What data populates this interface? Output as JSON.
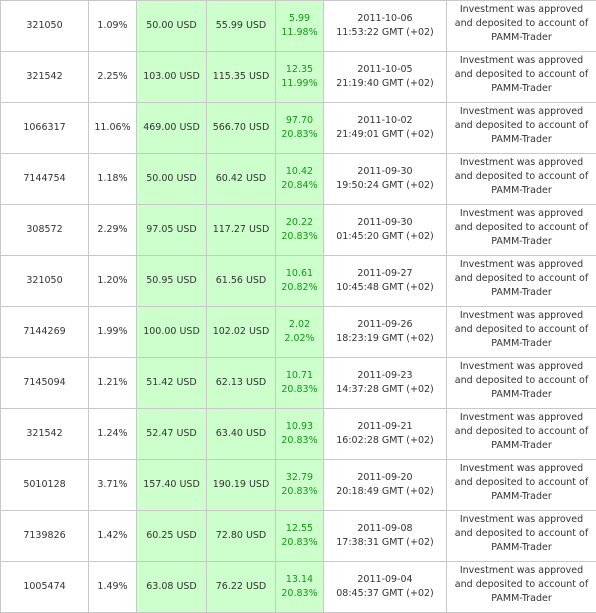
{
  "table": {
    "rows": [
      [
        "321050",
        "1.09%",
        "50.00 USD",
        "55.99 USD",
        "5.99",
        "11.98%",
        "2011-10-06",
        "11:53:22 GMT (+02)",
        "Investment was approved and deposited to account of PAMM-Trader"
      ],
      [
        "321542",
        "2.25%",
        "103.00 USD",
        "115.35 USD",
        "12.35",
        "11.99%",
        "2011-10-05",
        "21:19:40 GMT (+02)",
        "Investment was approved and deposited to account of PAMM-Trader"
      ],
      [
        "1066317",
        "11.06%",
        "469.00 USD",
        "566.70 USD",
        "97.70",
        "20.83%",
        "2011-10-02",
        "21:49:01 GMT (+02)",
        "Investment was approved and deposited to account of PAMM-Trader"
      ],
      [
        "7144754",
        "1.18%",
        "50.00 USD",
        "60.42 USD",
        "10.42",
        "20.84%",
        "2011-09-30",
        "19:50:24 GMT (+02)",
        "Investment was approved and deposited to account of PAMM-Trader"
      ],
      [
        "308572",
        "2.29%",
        "97.05 USD",
        "117.27 USD",
        "20.22",
        "20.83%",
        "2011-09-30",
        "01:45:20 GMT (+02)",
        "Investment was approved and deposited to account of PAMM-Trader"
      ],
      [
        "321050",
        "1.20%",
        "50.95 USD",
        "61.56 USD",
        "10.61",
        "20.82%",
        "2011-09-27",
        "10:45:48 GMT (+02)",
        "Investment was approved and deposited to account of PAMM-Trader"
      ],
      [
        "7144269",
        "1.99%",
        "100.00 USD",
        "102.02 USD",
        "2.02",
        "2.02%",
        "2011-09-26",
        "18:23:19 GMT (+02)",
        "Investment was approved and deposited to account of PAMM-Trader"
      ],
      [
        "7145094",
        "1.21%",
        "51.42 USD",
        "62.13 USD",
        "10.71",
        "20.83%",
        "2011-09-23",
        "14:37:28 GMT (+02)",
        "Investment was approved and deposited to account of PAMM-Trader"
      ],
      [
        "321542",
        "1.24%",
        "52.47 USD",
        "63.40 USD",
        "10.93",
        "20.83%",
        "2011-09-21",
        "16:02:28 GMT (+02)",
        "Investment was approved and deposited to account of PAMM-Trader"
      ],
      [
        "5010128",
        "3.71%",
        "157.40 USD",
        "190.19 USD",
        "32.79",
        "20.83%",
        "2011-09-20",
        "20:18:49 GMT (+02)",
        "Investment was approved and deposited to account of PAMM-Trader"
      ],
      [
        "7139826",
        "1.42%",
        "60.25 USD",
        "72.80 USD",
        "12.55",
        "20.83%",
        "2011-09-08",
        "17:38:31 GMT (+02)",
        "Investment was approved and deposited to account of PAMM-Trader"
      ],
      [
        "1005474",
        "1.49%",
        "63.08 USD",
        "76.22 USD",
        "13.14",
        "20.83%",
        "2011-09-04",
        "08:45:37 GMT (+02)",
        "Investment was approved and deposited to account of PAMM-Trader"
      ]
    ]
  }
}
